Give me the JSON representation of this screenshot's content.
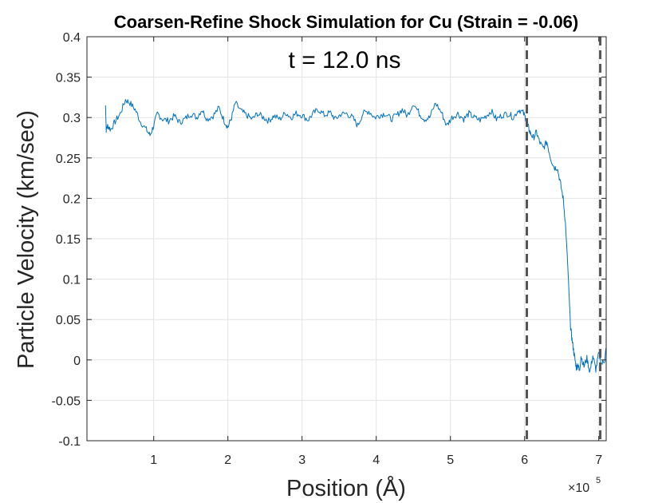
{
  "chart_data": {
    "type": "line",
    "title": "Coarsen-Refine Shock Simulation for Cu (Strain = -0.06)",
    "annotation": "t = 12.0 ns",
    "xlabel": "Position (Å)",
    "ylabel": "Particle Velocity (km/sec)",
    "x_multiplier": {
      "base": "×10",
      "exponent": "5"
    },
    "xlim": [
      0.1,
      7.1
    ],
    "ylim": [
      -0.1,
      0.4
    ],
    "x_ticks": [
      1,
      2,
      3,
      4,
      5,
      6,
      7
    ],
    "x_tick_labels": [
      "1",
      "2",
      "3",
      "4",
      "5",
      "6",
      "7"
    ],
    "y_ticks": [
      -0.1,
      -0.05,
      0,
      0.05,
      0.1,
      0.15,
      0.2,
      0.25,
      0.3,
      0.35,
      0.4
    ],
    "y_tick_labels": [
      "-0.1",
      "-0.05",
      "0",
      "0.05",
      "0.1",
      "0.15",
      "0.2",
      "0.25",
      "0.3",
      "0.35",
      "0.4"
    ],
    "grid": true,
    "line_color": "#0072BD",
    "vlines": [
      {
        "x": 6.03,
        "style": "dashed",
        "color": "#555555"
      },
      {
        "x": 7.02,
        "style": "dashed",
        "color": "#555555"
      }
    ],
    "series": [
      {
        "x": [
          0.35,
          0.36,
          0.38,
          0.42,
          0.48,
          0.55,
          0.62,
          0.68,
          0.75,
          0.82,
          0.9,
          0.95,
          1.0,
          1.05,
          1.12,
          1.2,
          1.28,
          1.35,
          1.42,
          1.5,
          1.58,
          1.65,
          1.72,
          1.8,
          1.88,
          1.95,
          2.0,
          2.05,
          2.1,
          2.18,
          2.25,
          2.33,
          2.4,
          2.48,
          2.55,
          2.62,
          2.7,
          2.78,
          2.85,
          2.92,
          3.0,
          3.08,
          3.15,
          3.22,
          3.3,
          3.38,
          3.45,
          3.52,
          3.6,
          3.68,
          3.75,
          3.82,
          3.9,
          3.98,
          4.05,
          4.12,
          4.2,
          4.28,
          4.35,
          4.42,
          4.5,
          4.58,
          4.65,
          4.72,
          4.8,
          4.88,
          4.95,
          5.02,
          5.1,
          5.18,
          5.25,
          5.32,
          5.4,
          5.48,
          5.55,
          5.62,
          5.7,
          5.78,
          5.85,
          5.92,
          5.98,
          6.02,
          6.05,
          6.08,
          6.12,
          6.16,
          6.2,
          6.25,
          6.3,
          6.35,
          6.4,
          6.44,
          6.48,
          6.52,
          6.55,
          6.58,
          6.6,
          6.62,
          6.64,
          6.66,
          6.68,
          6.7,
          6.72,
          6.74,
          6.76,
          6.8,
          6.84,
          6.88,
          6.92,
          6.96,
          7.0,
          7.04,
          7.08,
          7.1
        ],
        "y": [
          0.315,
          0.285,
          0.29,
          0.285,
          0.295,
          0.305,
          0.322,
          0.318,
          0.31,
          0.295,
          0.285,
          0.278,
          0.29,
          0.305,
          0.298,
          0.296,
          0.302,
          0.294,
          0.298,
          0.305,
          0.3,
          0.31,
          0.298,
          0.302,
          0.312,
          0.296,
          0.288,
          0.3,
          0.318,
          0.308,
          0.303,
          0.298,
          0.305,
          0.3,
          0.296,
          0.302,
          0.298,
          0.306,
          0.3,
          0.305,
          0.303,
          0.297,
          0.305,
          0.31,
          0.303,
          0.306,
          0.298,
          0.304,
          0.305,
          0.3,
          0.29,
          0.305,
          0.308,
          0.3,
          0.303,
          0.305,
          0.298,
          0.303,
          0.31,
          0.302,
          0.318,
          0.305,
          0.298,
          0.3,
          0.318,
          0.306,
          0.29,
          0.3,
          0.305,
          0.298,
          0.305,
          0.3,
          0.297,
          0.302,
          0.308,
          0.298,
          0.303,
          0.305,
          0.3,
          0.31,
          0.306,
          0.298,
          0.288,
          0.28,
          0.275,
          0.282,
          0.27,
          0.262,
          0.27,
          0.25,
          0.238,
          0.238,
          0.22,
          0.2,
          0.17,
          0.12,
          0.08,
          0.04,
          0.025,
          0.012,
          0.0,
          -0.01,
          -0.005,
          -0.015,
          0.005,
          -0.008,
          0.002,
          -0.015,
          0.005,
          -0.012,
          0.008,
          -0.005,
          0.0,
          0.015
        ]
      }
    ]
  }
}
